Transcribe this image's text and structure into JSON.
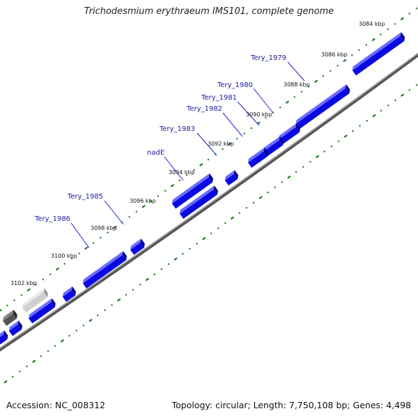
{
  "title": "Trichodesmium erythraeum IMS101, complete genome",
  "accession_text": "Accession: NC_008312",
  "summary_text": "Topology: circular; Length: 7,750,108 bp; Genes: 4,498",
  "colors": {
    "backbone": "#777777",
    "gene_fill": "#0a0ae0",
    "gene_top": "#6b6bff",
    "gene_side": "#00008a",
    "tick_major": "#1a7a1a",
    "tick_minor": "#1a7a1a",
    "label_line": "#1f1fd8",
    "label_text": "#1a1a9a",
    "grey_light": "#cfcfcf",
    "grey_dark": "#555555"
  },
  "scale_labels": [
    "3084 kbp",
    "3086 kbp",
    "3088 kbp",
    "3090 kbp",
    "3092 kbp",
    "3094 kbp",
    "3096 kbp",
    "3098 kbp",
    "3100 kbp",
    "3102 kbp"
  ],
  "gene_labels": [
    "Tery_1979",
    "Tery_1980",
    "Tery_1981",
    "Tery_1982",
    "Tery_1983",
    "nadE",
    "Tery_1985",
    "Tery_1986"
  ]
}
